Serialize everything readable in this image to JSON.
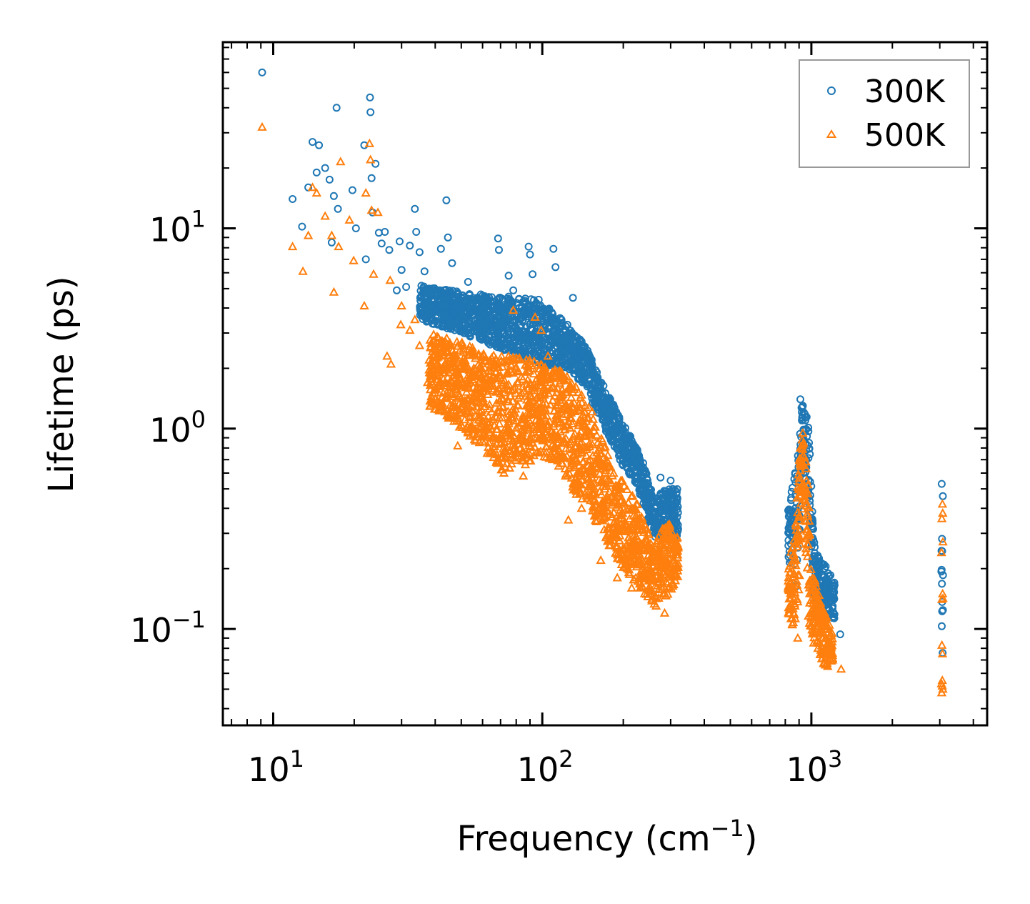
{
  "chart_data": {
    "type": "scatter",
    "title": "",
    "xlabel": "Frequency (cm",
    "xlabel_sup": "−1",
    "xlabel_close": ")",
    "ylabel": "Lifetime (ps)",
    "xscale": "log",
    "yscale": "log",
    "xlim": [
      6.5,
      4500
    ],
    "ylim": [
      0.033,
      85
    ],
    "x_ticks": [
      {
        "value": 10,
        "base": "10",
        "exp": "1"
      },
      {
        "value": 100,
        "base": "10",
        "exp": "2"
      },
      {
        "value": 1000,
        "base": "10",
        "exp": "3"
      }
    ],
    "y_ticks": [
      {
        "value": 0.1,
        "base": "10",
        "exp": "−1"
      },
      {
        "value": 1,
        "base": "10",
        "exp": "0"
      },
      {
        "value": 10,
        "base": "10",
        "exp": "1"
      }
    ],
    "legend_position": "top-right",
    "series": [
      {
        "name": "300K",
        "marker": "circle-open",
        "color": "#1f77b4",
        "points": [
          [
            9.1,
            60
          ],
          [
            11.8,
            14
          ],
          [
            12.8,
            10.2
          ],
          [
            13.5,
            16
          ],
          [
            14,
            27
          ],
          [
            14.5,
            19
          ],
          [
            14.8,
            26
          ],
          [
            15.6,
            20
          ],
          [
            16.2,
            17.5
          ],
          [
            16.5,
            8.5
          ],
          [
            16.8,
            14.5
          ],
          [
            17.2,
            40
          ],
          [
            17.4,
            12.5
          ],
          [
            19.7,
            15.5
          ],
          [
            20.3,
            10
          ],
          [
            21.8,
            26
          ],
          [
            22.1,
            7
          ],
          [
            22.9,
            45
          ],
          [
            23,
            38
          ],
          [
            23.2,
            17.8
          ],
          [
            23.4,
            12
          ],
          [
            24,
            21
          ],
          [
            24.7,
            9.5
          ],
          [
            25.3,
            8.4
          ],
          [
            26,
            9.6
          ],
          [
            27,
            7.8
          ],
          [
            28.8,
            4.9
          ],
          [
            29.5,
            8.6
          ],
          [
            30,
            6.2
          ],
          [
            31.2,
            5.1
          ],
          [
            32.2,
            8.2
          ],
          [
            33.6,
            12.5
          ],
          [
            34,
            9.6
          ],
          [
            35,
            7.6
          ],
          [
            36.5,
            6.1
          ],
          [
            38,
            5
          ],
          [
            40.1,
            4.6
          ],
          [
            42,
            7.9
          ],
          [
            44,
            13.8
          ],
          [
            44.6,
            9
          ],
          [
            46.2,
            6.7
          ],
          [
            48,
            4.7
          ],
          [
            50.2,
            4.2
          ],
          [
            53,
            5.4
          ],
          [
            56,
            4.4
          ],
          [
            60,
            3.7
          ],
          [
            65,
            4
          ],
          [
            68.5,
            8.9
          ],
          [
            69,
            7.8
          ],
          [
            75,
            5.8
          ],
          [
            78,
            4.9
          ],
          [
            89,
            8.1
          ],
          [
            90,
            7.4
          ],
          [
            92,
            5.9
          ],
          [
            97,
            4.4
          ],
          [
            102,
            3.2
          ],
          [
            110,
            7.9
          ],
          [
            112,
            6.4
          ],
          [
            124,
            3.3
          ],
          [
            130,
            4.5
          ],
          [
            140,
            2.7
          ],
          [
            150,
            2.3
          ],
          [
            165,
            1.7
          ],
          [
            180,
            1.3
          ],
          [
            205,
            0.86
          ],
          [
            220,
            0.78
          ],
          [
            240,
            0.45
          ],
          [
            265,
            0.38
          ],
          [
            275,
            0.57
          ],
          [
            300,
            0.55
          ],
          [
            315,
            0.47
          ],
          [
            820,
            0.39
          ],
          [
            860,
            0.3
          ],
          [
            910,
            1.4
          ],
          [
            930,
            1.3
          ],
          [
            950,
            1.1
          ],
          [
            980,
            0.85
          ],
          [
            1000,
            0.28
          ],
          [
            1050,
            0.2
          ],
          [
            1120,
            0.2
          ],
          [
            1150,
            0.16
          ],
          [
            1200,
            0.13
          ],
          [
            1280,
            0.094
          ],
          [
            3050,
            0.53
          ],
          [
            3080,
            0.46
          ]
        ],
        "bands": [
          [
            [
              35,
              3.5,
              5.2
            ],
            [
              50,
              3.0,
              4.8
            ],
            [
              70,
              2.5,
              4.6
            ],
            [
              90,
              2.2,
              4.5
            ],
            [
              110,
              2.0,
              3.9
            ],
            [
              125,
              2.0,
              3.2
            ],
            [
              145,
              1.6,
              2.6
            ],
            [
              160,
              1.2,
              1.9
            ],
            [
              180,
              0.85,
              1.4
            ],
            [
              200,
              0.65,
              1.05
            ],
            [
              220,
              0.55,
              0.85
            ],
            [
              240,
              0.4,
              0.65
            ],
            [
              260,
              0.28,
              0.45
            ],
            [
              290,
              0.3,
              0.5
            ],
            [
              320,
              0.28,
              0.5
            ]
          ],
          [
            [
              820,
              0.22,
              0.38
            ],
            [
              880,
              0.15,
              0.7
            ],
            [
              920,
              0.5,
              1.38
            ],
            [
              950,
              0.6,
              1.25
            ],
            [
              990,
              0.3,
              0.9
            ],
            [
              1020,
              0.14,
              0.28
            ],
            [
              1080,
              0.14,
              0.22
            ],
            [
              1150,
              0.12,
              0.2
            ],
            [
              1220,
              0.11,
              0.17
            ]
          ],
          [
            [
              3040,
              0.07,
              0.52
            ],
            [
              3085,
              0.07,
              0.45
            ]
          ]
        ]
      },
      {
        "name": "500K",
        "marker": "triangle-open",
        "color": "#ff7f0e",
        "points": [
          [
            9.1,
            32
          ],
          [
            11.8,
            8.1
          ],
          [
            12.9,
            6.1
          ],
          [
            13.5,
            9.2
          ],
          [
            14,
            16
          ],
          [
            14.5,
            15
          ],
          [
            15.6,
            11.5
          ],
          [
            16.5,
            9.2
          ],
          [
            16.8,
            4.8
          ],
          [
            17.5,
            8.1
          ],
          [
            17.8,
            21.5
          ],
          [
            19.2,
            11
          ],
          [
            19.9,
            6.9
          ],
          [
            21.8,
            4.1
          ],
          [
            22.1,
            15
          ],
          [
            22.8,
            26.5
          ],
          [
            23,
            22
          ],
          [
            23.2,
            12.3
          ],
          [
            23.6,
            5.9
          ],
          [
            24.5,
            12
          ],
          [
            26.5,
            2.3
          ],
          [
            27.2,
            5.5
          ],
          [
            27.4,
            2.1
          ],
          [
            29.8,
            3.3
          ],
          [
            30,
            4.1
          ],
          [
            32.2,
            3.1
          ],
          [
            33.6,
            3.5
          ],
          [
            35,
            2.6
          ],
          [
            37.5,
            1.7
          ],
          [
            38,
            2.2
          ],
          [
            40,
            1.4
          ],
          [
            44.5,
            1.8
          ],
          [
            48.5,
            0.82
          ],
          [
            50,
            1.2
          ],
          [
            56,
            0.88
          ],
          [
            64,
            0.75
          ],
          [
            72,
            0.6
          ],
          [
            78,
            3.9
          ],
          [
            85,
            0.58
          ],
          [
            94,
            3.6
          ],
          [
            99,
            3.1
          ],
          [
            105,
            2.3
          ],
          [
            108,
            0.75
          ],
          [
            115,
            0.65
          ],
          [
            122,
            0.58
          ],
          [
            125,
            0.35
          ],
          [
            140,
            0.4
          ],
          [
            165,
            0.22
          ],
          [
            190,
            0.18
          ],
          [
            215,
            0.16
          ],
          [
            240,
            0.15
          ],
          [
            265,
            0.13
          ],
          [
            285,
            0.12
          ],
          [
            300,
            0.24
          ],
          [
            310,
            0.22
          ],
          [
            820,
            0.16
          ],
          [
            860,
            0.12
          ],
          [
            890,
            0.09
          ],
          [
            910,
            0.8
          ],
          [
            930,
            0.95
          ],
          [
            960,
            0.55
          ],
          [
            1000,
            0.15
          ],
          [
            1020,
            0.085
          ],
          [
            1050,
            0.1
          ],
          [
            1100,
            0.075
          ],
          [
            1150,
            0.065
          ],
          [
            1200,
            0.07
          ],
          [
            1290,
            0.063
          ],
          [
            3050,
            0.048
          ],
          [
            3080,
            0.05
          ],
          [
            3070,
            0.42
          ]
        ],
        "bands": [
          [
            [
              38,
              1.3,
              3.0
            ],
            [
              50,
              1.0,
              2.7
            ],
            [
              60,
              0.8,
              2.4
            ],
            [
              70,
              0.62,
              2.3
            ],
            [
              85,
              0.65,
              2.3
            ],
            [
              100,
              0.72,
              2.1
            ],
            [
              115,
              0.68,
              2.0
            ],
            [
              125,
              0.55,
              1.8
            ],
            [
              135,
              0.45,
              1.6
            ],
            [
              150,
              0.4,
              1.3
            ],
            [
              165,
              0.3,
              1.0
            ],
            [
              180,
              0.25,
              0.65
            ],
            [
              200,
              0.2,
              0.55
            ],
            [
              220,
              0.17,
              0.45
            ],
            [
              240,
              0.15,
              0.35
            ],
            [
              260,
              0.13,
              0.26
            ],
            [
              280,
              0.14,
              0.32
            ],
            [
              300,
              0.15,
              0.34
            ],
            [
              320,
              0.18,
              0.28
            ]
          ],
          [
            [
              820,
              0.12,
              0.2
            ],
            [
              860,
              0.1,
              0.3
            ],
            [
              900,
              0.15,
              0.65
            ],
            [
              920,
              0.35,
              0.95
            ],
            [
              940,
              0.35,
              0.85
            ],
            [
              970,
              0.12,
              0.55
            ],
            [
              1000,
              0.09,
              0.2
            ],
            [
              1050,
              0.08,
              0.16
            ],
            [
              1120,
              0.065,
              0.12
            ],
            [
              1200,
              0.07,
              0.1
            ]
          ],
          [
            [
              3040,
              0.05,
              0.48
            ],
            [
              3085,
              0.05,
              0.42
            ]
          ]
        ]
      }
    ]
  }
}
